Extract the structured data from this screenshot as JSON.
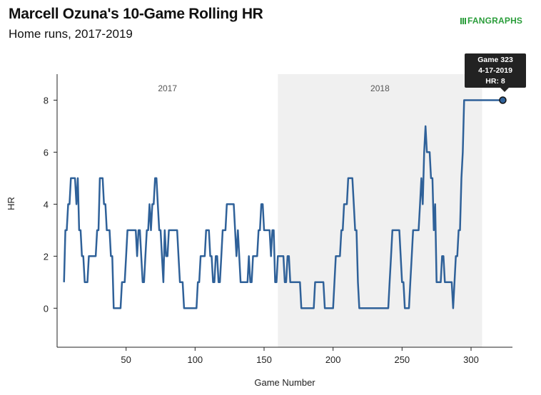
{
  "header": {
    "title": "Marcell Ozuna's 10-Game Rolling HR",
    "subtitle": "Home runs, 2017-2019",
    "logo_text": "FANGRAPHS"
  },
  "tooltip": {
    "line1": "Game 323",
    "line2": "4-17-2019",
    "line3": "HR: 8"
  },
  "colors": {
    "line": "#2f6199",
    "band": "#f0f0f0",
    "logo": "#2a9d3a",
    "tooltip_bg": "#222222"
  },
  "chart_data": {
    "type": "line",
    "title": "Marcell Ozuna's 10-Game Rolling HR",
    "subtitle": "Home runs, 2017-2019",
    "xlabel": "Game Number",
    "ylabel": "HR",
    "xlim": [
      0,
      330
    ],
    "ylim": [
      -1.5,
      9
    ],
    "xticks": [
      50,
      100,
      150,
      200,
      250,
      300
    ],
    "yticks": [
      0,
      2,
      4,
      6,
      8
    ],
    "grid": false,
    "legend": "none",
    "regions": [
      {
        "label": "2017",
        "x": [
          0,
          160
        ],
        "shaded": false
      },
      {
        "label": "2018",
        "x": [
          160,
          308
        ],
        "shaded": true
      }
    ],
    "highlight": {
      "x": 323,
      "y": 8
    },
    "series": [
      {
        "points": [
          [
            5,
            1
          ],
          [
            6,
            3
          ],
          [
            7,
            3
          ],
          [
            8,
            4
          ],
          [
            9,
            4
          ],
          [
            10,
            5
          ],
          [
            11,
            5
          ],
          [
            12,
            5
          ],
          [
            13,
            5
          ],
          [
            14,
            4
          ],
          [
            15,
            5
          ],
          [
            16,
            3
          ],
          [
            17,
            3
          ],
          [
            18,
            2
          ],
          [
            19,
            2
          ],
          [
            20,
            1
          ],
          [
            21,
            1
          ],
          [
            22,
            1
          ],
          [
            23,
            2
          ],
          [
            24,
            2
          ],
          [
            25,
            2
          ],
          [
            26,
            2
          ],
          [
            27,
            2
          ],
          [
            28,
            2
          ],
          [
            29,
            3
          ],
          [
            30,
            3
          ],
          [
            31,
            5
          ],
          [
            32,
            5
          ],
          [
            33,
            5
          ],
          [
            34,
            4
          ],
          [
            35,
            4
          ],
          [
            36,
            3
          ],
          [
            37,
            3
          ],
          [
            38,
            3
          ],
          [
            39,
            2
          ],
          [
            40,
            2
          ],
          [
            41,
            0
          ],
          [
            45,
            0
          ],
          [
            46,
            0
          ],
          [
            47,
            1
          ],
          [
            48,
            1
          ],
          [
            49,
            1
          ],
          [
            50,
            2
          ],
          [
            51,
            3
          ],
          [
            52,
            3
          ],
          [
            56,
            3
          ],
          [
            57,
            3
          ],
          [
            58,
            2
          ],
          [
            59,
            3
          ],
          [
            60,
            3
          ],
          [
            61,
            2
          ],
          [
            62,
            1
          ],
          [
            63,
            1
          ],
          [
            64,
            2
          ],
          [
            65,
            3
          ],
          [
            66,
            3
          ],
          [
            67,
            4
          ],
          [
            68,
            3
          ],
          [
            69,
            4
          ],
          [
            70,
            4
          ],
          [
            71,
            5
          ],
          [
            72,
            5
          ],
          [
            73,
            4
          ],
          [
            74,
            3
          ],
          [
            75,
            3
          ],
          [
            76,
            2
          ],
          [
            77,
            1
          ],
          [
            78,
            3
          ],
          [
            79,
            2
          ],
          [
            80,
            2
          ],
          [
            81,
            3
          ],
          [
            87,
            3
          ],
          [
            88,
            2
          ],
          [
            89,
            1
          ],
          [
            90,
            1
          ],
          [
            91,
            1
          ],
          [
            92,
            0
          ],
          [
            101,
            0
          ],
          [
            102,
            1
          ],
          [
            103,
            1
          ],
          [
            104,
            2
          ],
          [
            105,
            2
          ],
          [
            106,
            2
          ],
          [
            107,
            2
          ],
          [
            108,
            3
          ],
          [
            110,
            3
          ],
          [
            111,
            2
          ],
          [
            112,
            2
          ],
          [
            113,
            1
          ],
          [
            114,
            1
          ],
          [
            115,
            2
          ],
          [
            116,
            2
          ],
          [
            117,
            1
          ],
          [
            118,
            1
          ],
          [
            119,
            2
          ],
          [
            120,
            3
          ],
          [
            121,
            3
          ],
          [
            122,
            3
          ],
          [
            123,
            4
          ],
          [
            128,
            4
          ],
          [
            129,
            3
          ],
          [
            130,
            2
          ],
          [
            131,
            3
          ],
          [
            132,
            2
          ],
          [
            133,
            1
          ],
          [
            138,
            1
          ],
          [
            139,
            2
          ],
          [
            140,
            1
          ],
          [
            141,
            1
          ],
          [
            142,
            2
          ],
          [
            145,
            2
          ],
          [
            146,
            3
          ],
          [
            147,
            3
          ],
          [
            148,
            4
          ],
          [
            149,
            4
          ],
          [
            150,
            3
          ],
          [
            151,
            3
          ],
          [
            152,
            3
          ],
          [
            153,
            3
          ],
          [
            154,
            3
          ],
          [
            155,
            2
          ],
          [
            156,
            3
          ],
          [
            157,
            3
          ],
          [
            158,
            1
          ],
          [
            159,
            1
          ],
          [
            160,
            2
          ],
          [
            161,
            2
          ],
          [
            162,
            2
          ],
          [
            163,
            2
          ],
          [
            164,
            2
          ],
          [
            165,
            1
          ],
          [
            166,
            1
          ],
          [
            167,
            2
          ],
          [
            168,
            2
          ],
          [
            169,
            1
          ],
          [
            170,
            1
          ],
          [
            171,
            1
          ],
          [
            176,
            1
          ],
          [
            177,
            0
          ],
          [
            186,
            0
          ],
          [
            187,
            1
          ],
          [
            192,
            1
          ],
          [
            193,
            1
          ],
          [
            194,
            0
          ],
          [
            200,
            0
          ],
          [
            201,
            1
          ],
          [
            202,
            2
          ],
          [
            203,
            2
          ],
          [
            204,
            2
          ],
          [
            205,
            2
          ],
          [
            206,
            3
          ],
          [
            207,
            3
          ],
          [
            208,
            4
          ],
          [
            209,
            4
          ],
          [
            210,
            4
          ],
          [
            211,
            5
          ],
          [
            214,
            5
          ],
          [
            215,
            4
          ],
          [
            216,
            3
          ],
          [
            217,
            3
          ],
          [
            218,
            1
          ],
          [
            219,
            0
          ],
          [
            240,
            0
          ],
          [
            241,
            1
          ],
          [
            242,
            2
          ],
          [
            243,
            3
          ],
          [
            248,
            3
          ],
          [
            249,
            2
          ],
          [
            250,
            1
          ],
          [
            251,
            1
          ],
          [
            252,
            0
          ],
          [
            255,
            0
          ],
          [
            256,
            1
          ],
          [
            257,
            2
          ],
          [
            258,
            3
          ],
          [
            259,
            3
          ],
          [
            262,
            3
          ],
          [
            263,
            4
          ],
          [
            264,
            5
          ],
          [
            265,
            4
          ],
          [
            266,
            6
          ],
          [
            267,
            7
          ],
          [
            268,
            6
          ],
          [
            269,
            6
          ],
          [
            270,
            6
          ],
          [
            271,
            5
          ],
          [
            272,
            5
          ],
          [
            273,
            3
          ],
          [
            274,
            4
          ],
          [
            275,
            1
          ],
          [
            277,
            1
          ],
          [
            278,
            1
          ],
          [
            279,
            2
          ],
          [
            280,
            2
          ],
          [
            281,
            1
          ],
          [
            286,
            1
          ],
          [
            287,
            0
          ],
          [
            288,
            1
          ],
          [
            289,
            2
          ],
          [
            290,
            2
          ],
          [
            291,
            3
          ],
          [
            292,
            3
          ],
          [
            293,
            5
          ],
          [
            294,
            6
          ],
          [
            295,
            8
          ],
          [
            323,
            8
          ]
        ]
      }
    ]
  }
}
